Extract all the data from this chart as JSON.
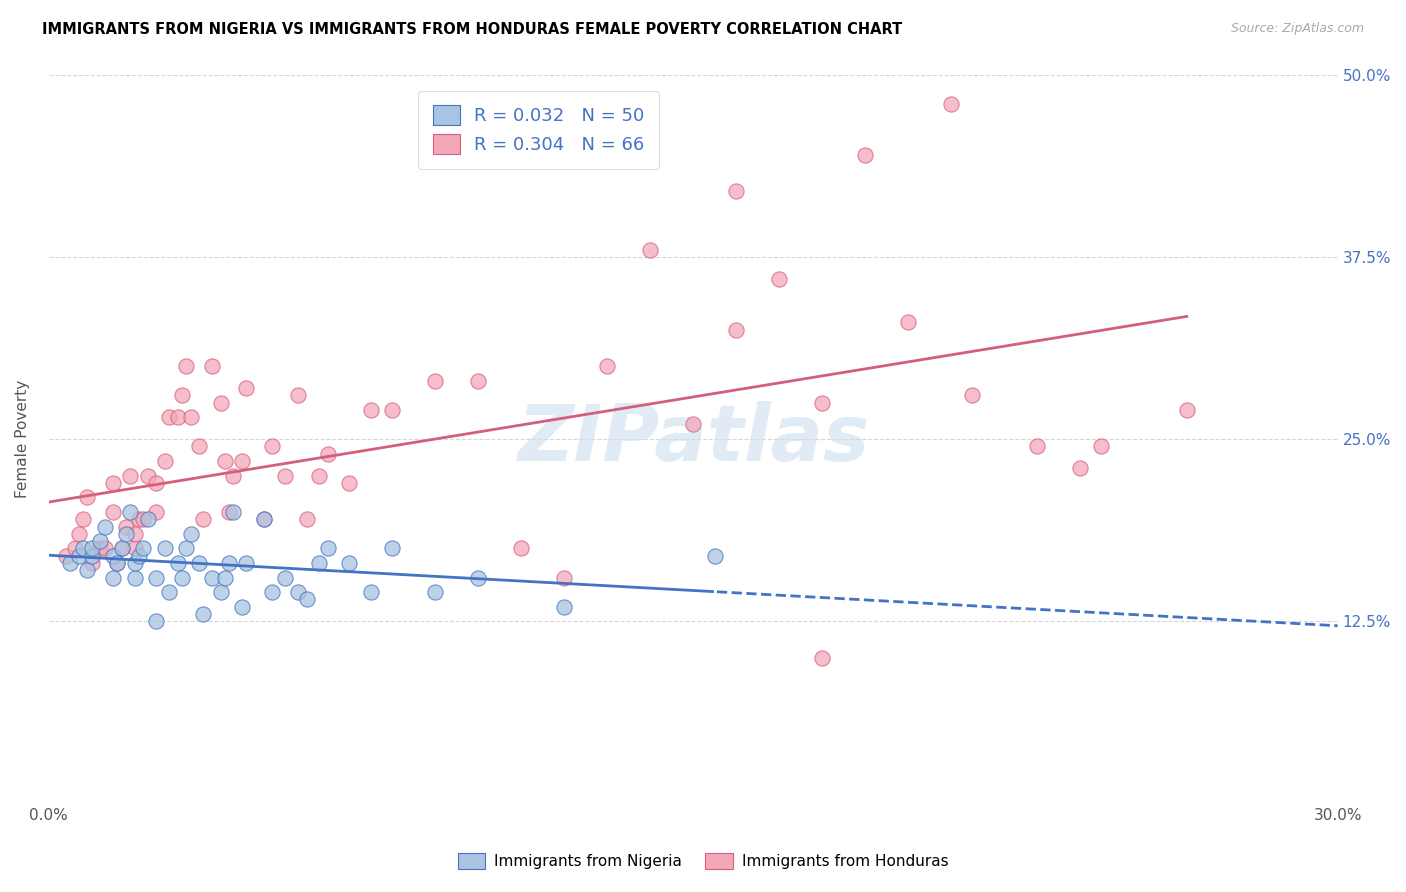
{
  "title": "IMMIGRANTS FROM NIGERIA VS IMMIGRANTS FROM HONDURAS FEMALE POVERTY CORRELATION CHART",
  "source": "Source: ZipAtlas.com",
  "ylabel": "Female Poverty",
  "x_min": 0.0,
  "x_max": 0.3,
  "y_min": 0.0,
  "y_max": 0.5,
  "x_ticks": [
    0.0,
    0.05,
    0.1,
    0.15,
    0.2,
    0.25,
    0.3
  ],
  "x_tick_labels": [
    "0.0%",
    "",
    "",
    "",
    "",
    "",
    "30.0%"
  ],
  "y_ticks": [
    0.0,
    0.125,
    0.25,
    0.375,
    0.5
  ],
  "y_tick_labels_right": [
    "",
    "12.5%",
    "25.0%",
    "37.5%",
    "50.0%"
  ],
  "nigeria_color": "#a8c4e0",
  "honduras_color": "#f4a7b9",
  "nigeria_R": 0.032,
  "nigeria_N": 50,
  "honduras_R": 0.304,
  "honduras_N": 66,
  "nigeria_line_color": "#4472c4",
  "honduras_line_color": "#d45f7a",
  "watermark": "ZIPatlas",
  "legend_label_nigeria": "Immigrants from Nigeria",
  "legend_label_honduras": "Immigrants from Honduras",
  "nigeria_scatter_x": [
    0.005,
    0.007,
    0.008,
    0.009,
    0.01,
    0.01,
    0.012,
    0.013,
    0.015,
    0.015,
    0.016,
    0.017,
    0.018,
    0.019,
    0.02,
    0.02,
    0.021,
    0.022,
    0.023,
    0.025,
    0.025,
    0.027,
    0.028,
    0.03,
    0.031,
    0.032,
    0.033,
    0.035,
    0.036,
    0.038,
    0.04,
    0.041,
    0.042,
    0.043,
    0.045,
    0.046,
    0.05,
    0.052,
    0.055,
    0.058,
    0.06,
    0.063,
    0.065,
    0.07,
    0.075,
    0.08,
    0.09,
    0.1,
    0.12,
    0.155
  ],
  "nigeria_scatter_y": [
    0.165,
    0.17,
    0.175,
    0.16,
    0.17,
    0.175,
    0.18,
    0.19,
    0.155,
    0.17,
    0.165,
    0.175,
    0.185,
    0.2,
    0.155,
    0.165,
    0.17,
    0.175,
    0.195,
    0.125,
    0.155,
    0.175,
    0.145,
    0.165,
    0.155,
    0.175,
    0.185,
    0.165,
    0.13,
    0.155,
    0.145,
    0.155,
    0.165,
    0.2,
    0.135,
    0.165,
    0.195,
    0.145,
    0.155,
    0.145,
    0.14,
    0.165,
    0.175,
    0.165,
    0.145,
    0.175,
    0.145,
    0.155,
    0.135,
    0.17
  ],
  "honduras_scatter_x": [
    0.004,
    0.006,
    0.007,
    0.008,
    0.009,
    0.01,
    0.012,
    0.013,
    0.015,
    0.015,
    0.016,
    0.017,
    0.018,
    0.019,
    0.02,
    0.02,
    0.021,
    0.022,
    0.023,
    0.025,
    0.025,
    0.027,
    0.028,
    0.03,
    0.031,
    0.032,
    0.033,
    0.035,
    0.036,
    0.038,
    0.04,
    0.041,
    0.042,
    0.043,
    0.045,
    0.046,
    0.05,
    0.052,
    0.055,
    0.058,
    0.06,
    0.063,
    0.065,
    0.07,
    0.075,
    0.08,
    0.09,
    0.1,
    0.11,
    0.12,
    0.13,
    0.14,
    0.15,
    0.16,
    0.17,
    0.18,
    0.19,
    0.2,
    0.215,
    0.23,
    0.245,
    0.16,
    0.18,
    0.21,
    0.24,
    0.265
  ],
  "honduras_scatter_y": [
    0.17,
    0.175,
    0.185,
    0.195,
    0.21,
    0.165,
    0.175,
    0.175,
    0.2,
    0.22,
    0.165,
    0.175,
    0.19,
    0.225,
    0.175,
    0.185,
    0.195,
    0.195,
    0.225,
    0.2,
    0.22,
    0.235,
    0.265,
    0.265,
    0.28,
    0.3,
    0.265,
    0.245,
    0.195,
    0.3,
    0.275,
    0.235,
    0.2,
    0.225,
    0.235,
    0.285,
    0.195,
    0.245,
    0.225,
    0.28,
    0.195,
    0.225,
    0.24,
    0.22,
    0.27,
    0.27,
    0.29,
    0.29,
    0.175,
    0.155,
    0.3,
    0.38,
    0.26,
    0.325,
    0.36,
    0.275,
    0.445,
    0.33,
    0.28,
    0.245,
    0.245,
    0.42,
    0.1,
    0.48,
    0.23,
    0.27
  ]
}
